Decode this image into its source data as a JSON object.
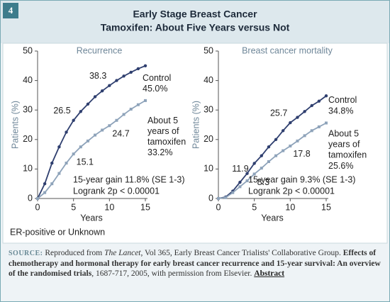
{
  "header": {
    "badge": "4",
    "title": "Early Stage Breast Cancer",
    "subtitle": "Tamoxifen: About Five Years versus Not"
  },
  "chart_data": [
    {
      "type": "line",
      "title": "Recurrence",
      "xlabel": "Years",
      "ylabel": "Patients (%)",
      "x": [
        0,
        1,
        2,
        3,
        4,
        5,
        6,
        7,
        8,
        9,
        10,
        11,
        12,
        13,
        14,
        15
      ],
      "xlim": [
        0,
        15
      ],
      "xticks": [
        0,
        5,
        10,
        15
      ],
      "ylim": [
        0,
        50
      ],
      "yticks": [
        0,
        10,
        20,
        30,
        40,
        50
      ],
      "series": [
        {
          "name": "Control",
          "color": "#2f3f6f",
          "marker": "circle",
          "values": [
            0,
            5,
            12,
            17.5,
            22.5,
            26.5,
            29.5,
            32,
            34.5,
            36.5,
            38.3,
            40,
            41.5,
            42.8,
            44,
            45.0
          ],
          "value_labels": [
            null,
            null,
            null,
            null,
            null,
            "26.5",
            null,
            null,
            null,
            null,
            "38.3",
            null,
            null,
            null,
            null,
            "45.0%"
          ]
        },
        {
          "name": "About 5 years of tamoxifen",
          "color": "#8ea3ba",
          "marker": "square",
          "values": [
            0,
            2,
            5,
            8.5,
            12,
            15.1,
            17.5,
            19.5,
            21.5,
            23.2,
            24.7,
            26.5,
            28.5,
            30.3,
            31.8,
            33.2
          ],
          "value_labels": [
            null,
            null,
            null,
            null,
            null,
            "15.1",
            null,
            null,
            null,
            null,
            "24.7",
            null,
            null,
            null,
            null,
            "33.2%"
          ]
        }
      ],
      "annotations": [
        "15-year gain 11.8% (SE 1-3)",
        "Logrank 2p < 0.00001"
      ]
    },
    {
      "type": "line",
      "title": "Breast cancer mortality",
      "xlabel": "Years",
      "ylabel": "Patients (%)",
      "x": [
        0,
        1,
        2,
        3,
        4,
        5,
        6,
        7,
        8,
        9,
        10,
        11,
        12,
        13,
        14,
        15
      ],
      "xlim": [
        0,
        15
      ],
      "xticks": [
        0,
        5,
        10,
        15
      ],
      "ylim": [
        0,
        50
      ],
      "yticks": [
        0,
        10,
        20,
        30,
        40,
        50
      ],
      "series": [
        {
          "name": "Control",
          "color": "#2f3f6f",
          "marker": "circle",
          "values": [
            0,
            0.5,
            2.5,
            5.5,
            8.5,
            11.9,
            14.5,
            17.5,
            20,
            23,
            25.7,
            27.5,
            29.5,
            31.5,
            33,
            34.8
          ],
          "value_labels": [
            null,
            null,
            null,
            null,
            null,
            "11.9",
            null,
            null,
            null,
            null,
            "25.7",
            null,
            null,
            null,
            null,
            "34.8%"
          ]
        },
        {
          "name": "About 5 years of tamoxifen",
          "color": "#8ea3ba",
          "marker": "square",
          "values": [
            0,
            0.3,
            2,
            4,
            6,
            8.3,
            10.3,
            12.5,
            14.5,
            16.2,
            17.8,
            19.5,
            21.3,
            23,
            24.3,
            25.6
          ],
          "value_labels": [
            null,
            null,
            null,
            null,
            null,
            "8.3",
            null,
            null,
            null,
            null,
            "17.8",
            null,
            null,
            null,
            null,
            "25.6%"
          ]
        }
      ],
      "annotations": [
        "15-year gain 9.3% (SE 1-3)",
        "Logrank 2p < 0.00001"
      ]
    }
  ],
  "footnote": "ER-positive or Unknown",
  "source": {
    "label": "SOURCE:",
    "text1": " Reproduced from ",
    "journal": "The Lancet",
    "text2": ", Vol 365, Early Breast Cancer Trialists' Collaborative Group. ",
    "article": "Effects of chemotherapy and hormonal therapy for early breast cancer recurrence and 15-year survival: An overview of the randomised trials",
    "text3": ", 1687-717, 2005, with permission from Elsevier. ",
    "link": "Abstract"
  }
}
